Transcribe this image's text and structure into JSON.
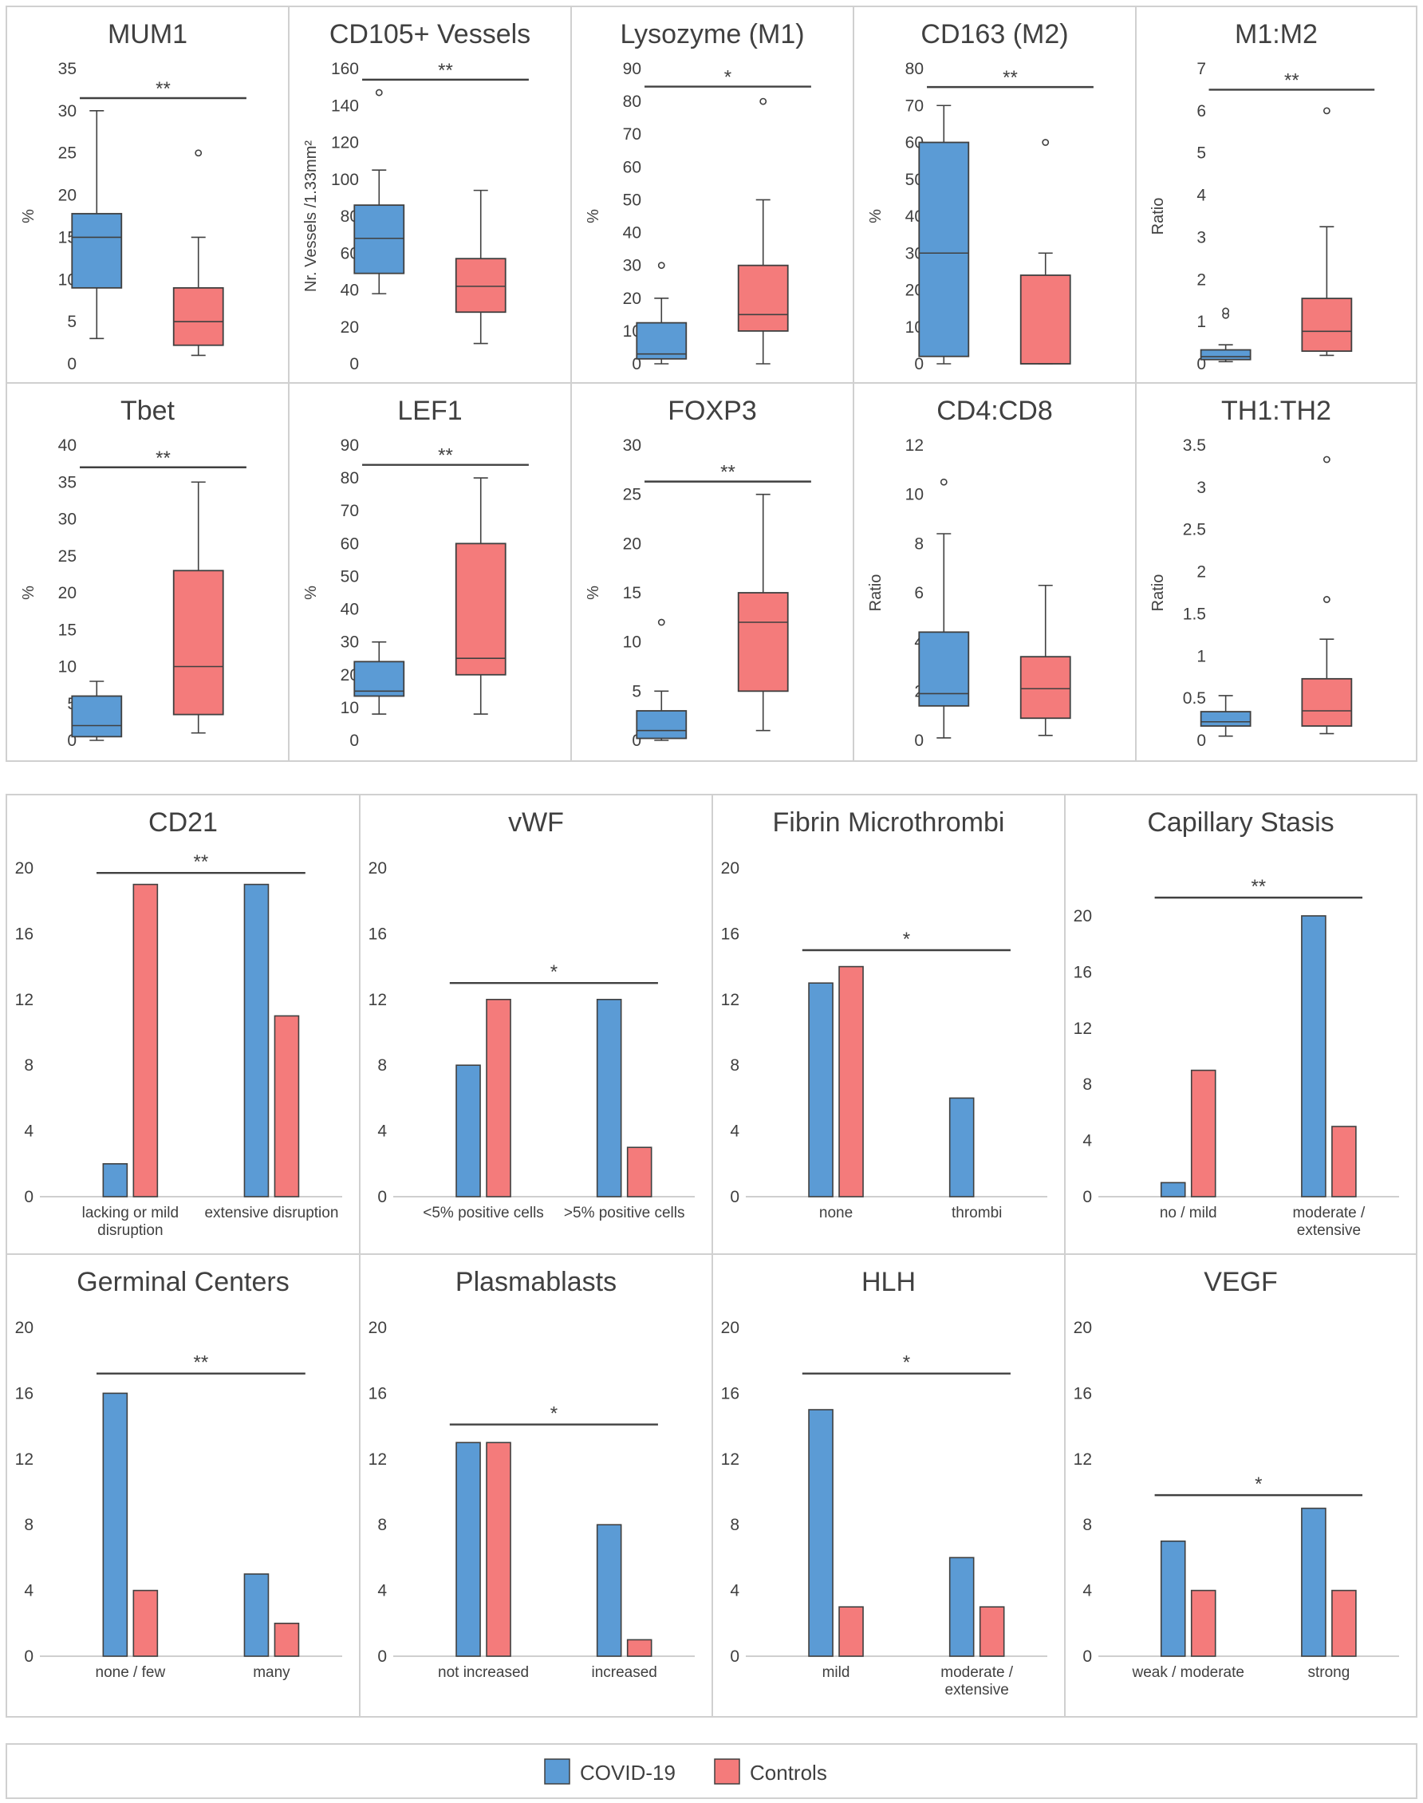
{
  "colors": {
    "covid": "#5b9bd5",
    "control": "#f47b7b",
    "stroke": "#404040",
    "axis": "#7f7f7f",
    "text": "#404040"
  },
  "legend": {
    "covid_label": "COVID-19",
    "control_label": "Controls"
  },
  "chart_data": [
    {
      "type": "box",
      "title": "MUM1",
      "ylabel": "%",
      "ylim": [
        0,
        35
      ],
      "yticks": [
        0,
        5,
        10,
        15,
        20,
        25,
        30,
        35
      ],
      "sig": "**",
      "sig_y": 31.5,
      "boxes": [
        {
          "group": "COVID-19",
          "whisker_low": 3,
          "q1": 9,
          "median": 15,
          "q3": 17.8,
          "whisker_high": 30,
          "outliers": []
        },
        {
          "group": "Controls",
          "whisker_low": 1,
          "q1": 2.2,
          "median": 5,
          "q3": 9,
          "whisker_high": 15,
          "outliers": [
            25
          ]
        }
      ]
    },
    {
      "type": "box",
      "title": "CD105+ Vessels",
      "ylabel": "Nr. Vessels /1.33mm²",
      "ylim": [
        0,
        160
      ],
      "yticks": [
        0,
        20,
        40,
        60,
        80,
        100,
        120,
        140,
        160
      ],
      "sig": "**",
      "sig_y": 154,
      "boxes": [
        {
          "group": "COVID-19",
          "whisker_low": 38,
          "q1": 49,
          "median": 68,
          "q3": 86,
          "whisker_high": 105,
          "outliers": [
            147
          ]
        },
        {
          "group": "Controls",
          "whisker_low": 11,
          "q1": 28,
          "median": 42,
          "q3": 57,
          "whisker_high": 94,
          "outliers": []
        }
      ]
    },
    {
      "type": "box",
      "title": "Lysozyme (M1)",
      "ylabel": "%",
      "ylim": [
        0,
        90
      ],
      "yticks": [
        0,
        10,
        20,
        30,
        40,
        50,
        60,
        70,
        80,
        90
      ],
      "sig": "*",
      "sig_y": 84.5,
      "boxes": [
        {
          "group": "COVID-19",
          "whisker_low": 0,
          "q1": 1.5,
          "median": 3,
          "q3": 12.5,
          "whisker_high": 20,
          "outliers": [
            30
          ]
        },
        {
          "group": "Controls",
          "whisker_low": 0,
          "q1": 10,
          "median": 15,
          "q3": 30,
          "whisker_high": 50,
          "outliers": [
            80
          ]
        }
      ]
    },
    {
      "type": "box",
      "title": "CD163 (M2)",
      "ylabel": "%",
      "ylim": [
        0,
        80
      ],
      "yticks": [
        0,
        10,
        20,
        30,
        40,
        50,
        60,
        70,
        80
      ],
      "sig": "**",
      "sig_y": 75,
      "boxes": [
        {
          "group": "COVID-19",
          "whisker_low": 0,
          "q1": 2,
          "median": 30,
          "q3": 60,
          "whisker_high": 70,
          "outliers": []
        },
        {
          "group": "Controls",
          "whisker_low": 0,
          "q1": 0,
          "median": 0,
          "q3": 24,
          "whisker_high": 30,
          "outliers": [
            60
          ]
        }
      ]
    },
    {
      "type": "box",
      "title": "M1:M2",
      "ylabel": "Ratio",
      "ylim": [
        0,
        7
      ],
      "yticks": [
        0,
        1,
        2,
        3,
        4,
        5,
        6,
        7
      ],
      "sig": "**",
      "sig_y": 6.5,
      "boxes": [
        {
          "group": "COVID-19",
          "whisker_low": 0.05,
          "q1": 0.1,
          "median": 0.17,
          "q3": 0.33,
          "whisker_high": 0.45,
          "outliers": [
            1.15,
            1.25
          ]
        },
        {
          "group": "Controls",
          "whisker_low": 0.2,
          "q1": 0.3,
          "median": 0.77,
          "q3": 1.55,
          "whisker_high": 3.25,
          "outliers": [
            6
          ]
        }
      ]
    },
    {
      "type": "box",
      "title": "Tbet",
      "ylabel": "%",
      "ylim": [
        0,
        40
      ],
      "yticks": [
        0,
        5,
        10,
        15,
        20,
        25,
        30,
        35,
        40
      ],
      "sig": "**",
      "sig_y": 37,
      "boxes": [
        {
          "group": "COVID-19",
          "whisker_low": 0,
          "q1": 0.5,
          "median": 2,
          "q3": 6,
          "whisker_high": 8,
          "outliers": []
        },
        {
          "group": "Controls",
          "whisker_low": 1,
          "q1": 3.5,
          "median": 10,
          "q3": 23,
          "whisker_high": 35,
          "outliers": []
        }
      ]
    },
    {
      "type": "box",
      "title": "LEF1",
      "ylabel": "%",
      "ylim": [
        0,
        90
      ],
      "yticks": [
        0,
        10,
        20,
        30,
        40,
        50,
        60,
        70,
        80,
        90
      ],
      "sig": "**",
      "sig_y": 84,
      "boxes": [
        {
          "group": "COVID-19",
          "whisker_low": 8,
          "q1": 13.5,
          "median": 15,
          "q3": 24,
          "whisker_high": 30,
          "outliers": []
        },
        {
          "group": "Controls",
          "whisker_low": 8,
          "q1": 20,
          "median": 25,
          "q3": 60,
          "whisker_high": 80,
          "outliers": []
        }
      ]
    },
    {
      "type": "box",
      "title": "FOXP3",
      "ylabel": "%",
      "ylim": [
        0,
        30
      ],
      "yticks": [
        0,
        5,
        10,
        15,
        20,
        25,
        30
      ],
      "sig": "**",
      "sig_y": 26.3,
      "boxes": [
        {
          "group": "COVID-19",
          "whisker_low": 0,
          "q1": 0.2,
          "median": 1,
          "q3": 3,
          "whisker_high": 5,
          "outliers": [
            12
          ]
        },
        {
          "group": "Controls",
          "whisker_low": 1,
          "q1": 5,
          "median": 12,
          "q3": 15,
          "whisker_high": 25,
          "outliers": []
        }
      ]
    },
    {
      "type": "box",
      "title": "CD4:CD8",
      "ylabel": "Ratio",
      "ylim": [
        0,
        12
      ],
      "yticks": [
        0,
        2,
        4,
        6,
        8,
        10,
        12
      ],
      "sig": "",
      "sig_y": 0,
      "boxes": [
        {
          "group": "COVID-19",
          "whisker_low": 0.1,
          "q1": 1.4,
          "median": 1.9,
          "q3": 4.4,
          "whisker_high": 8.4,
          "outliers": [
            10.5
          ]
        },
        {
          "group": "Controls",
          "whisker_low": 0.2,
          "q1": 0.9,
          "median": 2.1,
          "q3": 3.4,
          "whisker_high": 6.3,
          "outliers": []
        }
      ]
    },
    {
      "type": "box",
      "title": "TH1:TH2",
      "ylabel": "Ratio",
      "ylim": [
        0,
        3.5
      ],
      "yticks": [
        0,
        0.5,
        1,
        1.5,
        2,
        2.5,
        3,
        3.5
      ],
      "sig": "",
      "sig_y": 0,
      "boxes": [
        {
          "group": "COVID-19",
          "whisker_low": 0.05,
          "q1": 0.17,
          "median": 0.22,
          "q3": 0.34,
          "whisker_high": 0.53,
          "outliers": []
        },
        {
          "group": "Controls",
          "whisker_low": 0.08,
          "q1": 0.17,
          "median": 0.35,
          "q3": 0.73,
          "whisker_high": 1.2,
          "outliers": [
            1.67,
            3.33
          ]
        }
      ]
    },
    {
      "type": "bar",
      "title": "CD21",
      "ylim": [
        0,
        20
      ],
      "yticks": [
        0,
        4,
        8,
        12,
        16,
        20
      ],
      "categories": [
        [
          "lacking or mild",
          "disruption"
        ],
        [
          "extensive disruption"
        ]
      ],
      "series": [
        {
          "name": "COVID-19",
          "values": [
            2,
            19
          ]
        },
        {
          "name": "Controls",
          "values": [
            19,
            11
          ]
        }
      ],
      "sig": "**",
      "sig_y": 19.7
    },
    {
      "type": "bar",
      "title": "vWF",
      "ylim": [
        0,
        20
      ],
      "yticks": [
        0,
        4,
        8,
        12,
        16,
        20
      ],
      "categories": [
        [
          "<5% positive cells"
        ],
        [
          ">5% positive cells"
        ]
      ],
      "series": [
        {
          "name": "COVID-19",
          "values": [
            8,
            12
          ]
        },
        {
          "name": "Controls",
          "values": [
            12,
            3
          ]
        }
      ],
      "sig": "*",
      "sig_y": 13
    },
    {
      "type": "bar",
      "title": "Fibrin Microthrombi",
      "ylim": [
        0,
        20
      ],
      "yticks": [
        0,
        4,
        8,
        12,
        16,
        20
      ],
      "categories": [
        [
          "none"
        ],
        [
          "thrombi"
        ]
      ],
      "series": [
        {
          "name": "COVID-19",
          "values": [
            13,
            6
          ]
        },
        {
          "name": "Controls",
          "values": [
            14,
            0
          ]
        }
      ],
      "sig": "*",
      "sig_y": 15
    },
    {
      "type": "bar",
      "title": "Capillary Stasis",
      "ylim": [
        0,
        20
      ],
      "yticks": [
        0,
        4,
        8,
        12,
        16,
        20
      ],
      "categories": [
        [
          "no / mild"
        ],
        [
          "moderate /",
          "extensive"
        ]
      ],
      "series": [
        {
          "name": "COVID-19",
          "values": [
            1,
            20
          ]
        },
        {
          "name": "Controls",
          "values": [
            9,
            5
          ]
        }
      ],
      "sig": "**",
      "sig_y": 21.3
    },
    {
      "type": "bar",
      "title": "Germinal Centers",
      "ylim": [
        0,
        20
      ],
      "yticks": [
        0,
        4,
        8,
        12,
        16,
        20
      ],
      "categories": [
        [
          "none / few"
        ],
        [
          "many"
        ]
      ],
      "series": [
        {
          "name": "COVID-19",
          "values": [
            16,
            5
          ]
        },
        {
          "name": "Controls",
          "values": [
            4,
            2
          ]
        }
      ],
      "sig": "**",
      "sig_y": 17.2
    },
    {
      "type": "bar",
      "title": "Plasmablasts",
      "ylim": [
        0,
        20
      ],
      "yticks": [
        0,
        4,
        8,
        12,
        16,
        20
      ],
      "categories": [
        [
          "not increased"
        ],
        [
          "increased"
        ]
      ],
      "series": [
        {
          "name": "COVID-19",
          "values": [
            13,
            8
          ]
        },
        {
          "name": "Controls",
          "values": [
            13,
            1
          ]
        }
      ],
      "sig": "*",
      "sig_y": 14.1
    },
    {
      "type": "bar",
      "title": "HLH",
      "ylim": [
        0,
        20
      ],
      "yticks": [
        0,
        4,
        8,
        12,
        16,
        20
      ],
      "categories": [
        [
          "mild"
        ],
        [
          "moderate /",
          "extensive"
        ]
      ],
      "series": [
        {
          "name": "COVID-19",
          "values": [
            15,
            6
          ]
        },
        {
          "name": "Controls",
          "values": [
            3,
            3
          ]
        }
      ],
      "sig": "*",
      "sig_y": 17.2
    },
    {
      "type": "bar",
      "title": "VEGF",
      "ylim": [
        0,
        20
      ],
      "yticks": [
        0,
        4,
        8,
        12,
        16,
        20
      ],
      "categories": [
        [
          "weak / moderate"
        ],
        [
          "strong"
        ]
      ],
      "series": [
        {
          "name": "COVID-19",
          "values": [
            7,
            9
          ]
        },
        {
          "name": "Controls",
          "values": [
            4,
            4
          ]
        }
      ],
      "sig": "*",
      "sig_y": 9.8
    }
  ]
}
